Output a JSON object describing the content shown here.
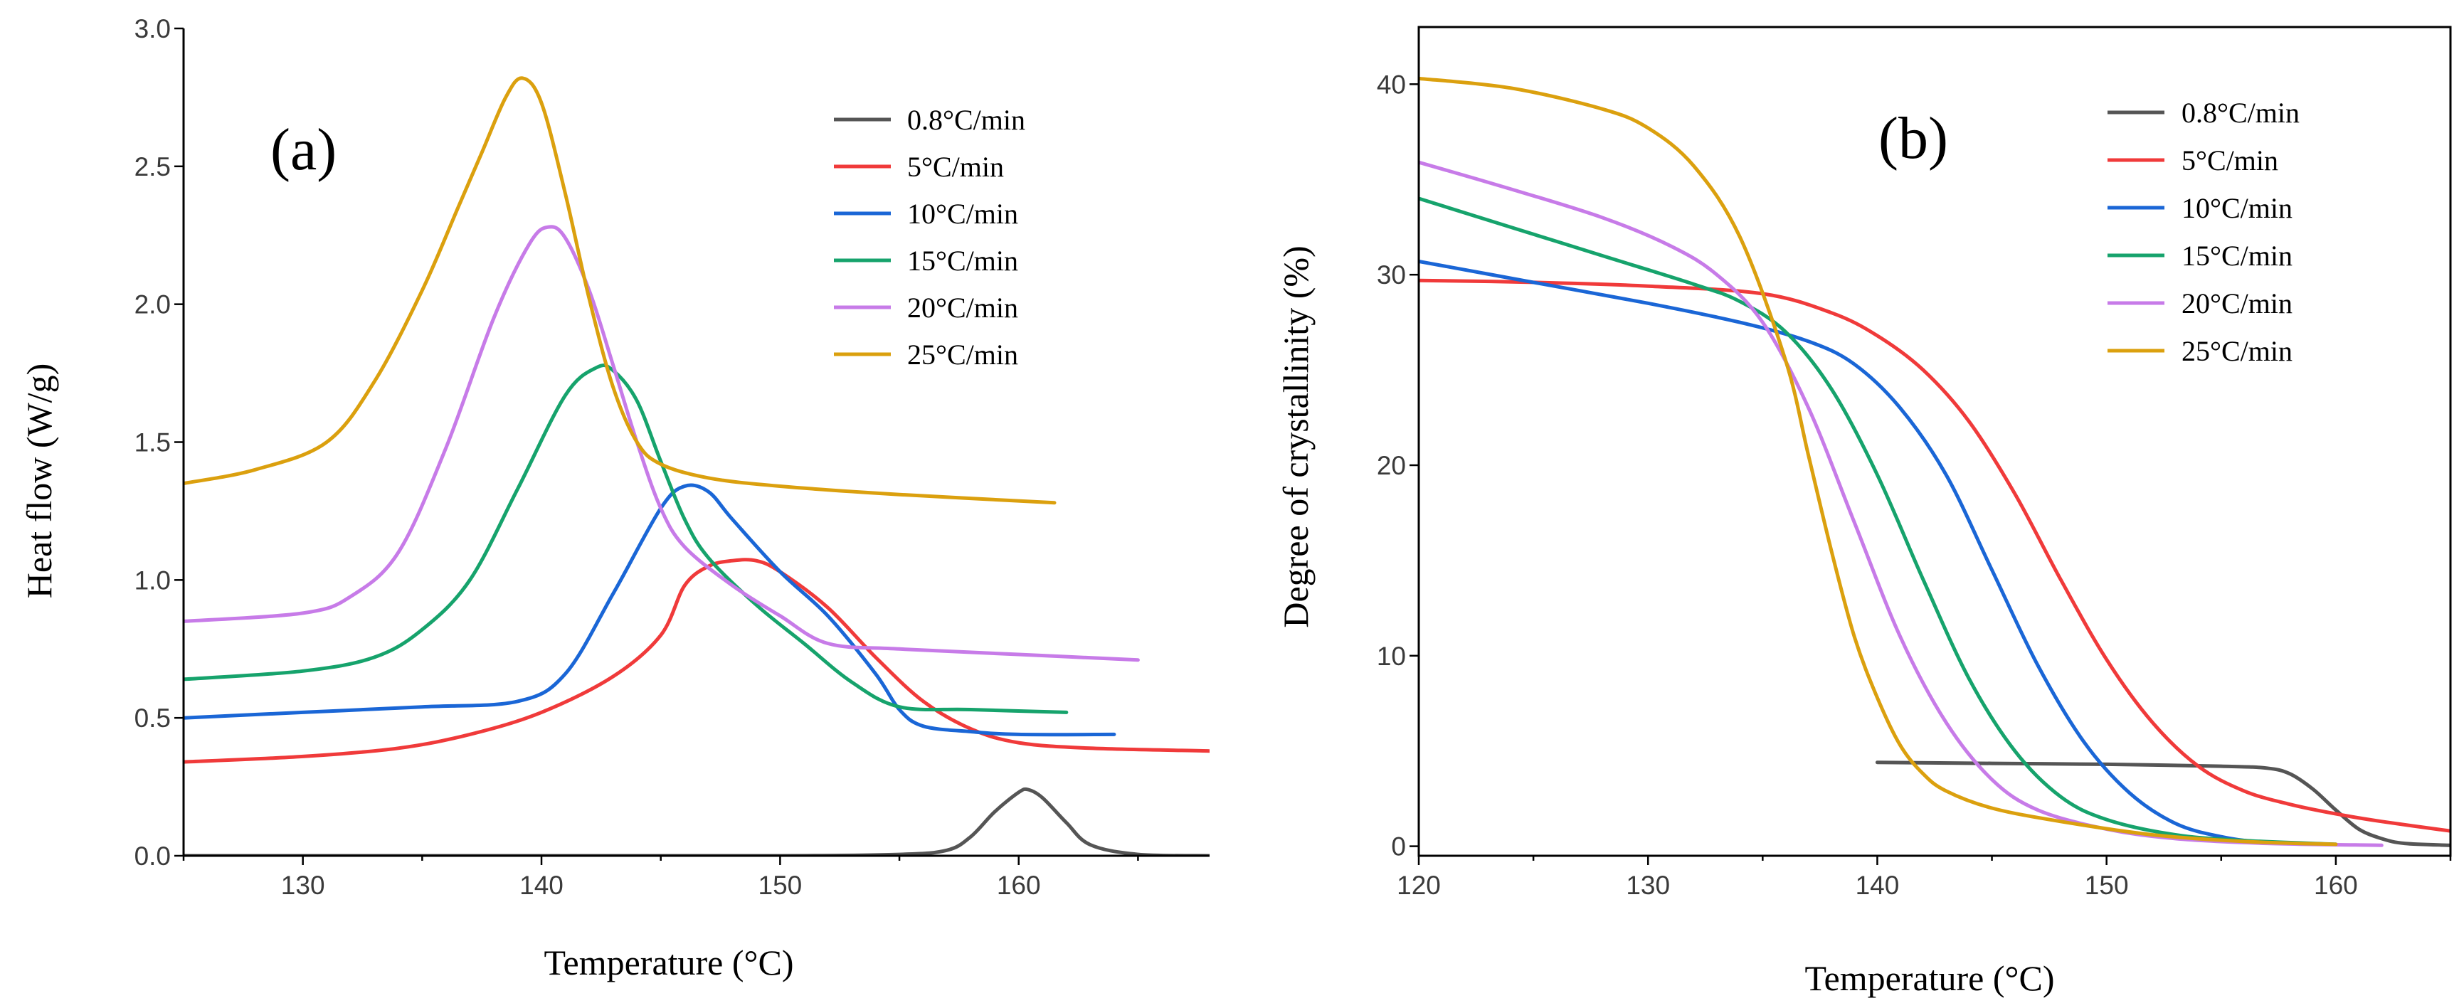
{
  "chart_data": [
    {
      "panel": "(a)",
      "type": "line",
      "xlabel": "Temperature (°C)",
      "ylabel": "Heat flow (W/g)",
      "xlim": [
        125,
        168
      ],
      "ylim": [
        0,
        3.0
      ],
      "xticks": [
        130,
        140,
        150,
        160
      ],
      "yticks": [
        0,
        0.5,
        1.0,
        1.5,
        2.0,
        2.5,
        3.0
      ],
      "ytick_labels": [
        "0.0",
        "0.5",
        "1.0",
        "1.5",
        "2.0",
        "2.5",
        "3.0"
      ],
      "xtick_labels": [
        "130",
        "140",
        "150",
        "160"
      ],
      "legend_position": "top-right",
      "series": [
        {
          "name": "0.8°C/min",
          "color": "#555555",
          "x": [
            125,
            140,
            150,
            155,
            157,
            158,
            159,
            160,
            160.4,
            161,
            162,
            163,
            165,
            168
          ],
          "y": [
            0.0,
            0.0,
            0.0,
            0.005,
            0.02,
            0.07,
            0.16,
            0.23,
            0.24,
            0.21,
            0.12,
            0.04,
            0.005,
            0.0
          ]
        },
        {
          "name": "5°C/min",
          "color": "#f03a3a",
          "x": [
            125,
            130,
            134,
            137,
            140,
            143,
            145,
            146,
            147,
            148,
            149,
            150,
            152,
            154,
            156,
            158,
            160,
            163,
            168
          ],
          "y": [
            0.34,
            0.36,
            0.39,
            0.44,
            0.52,
            0.65,
            0.8,
            0.98,
            1.05,
            1.07,
            1.07,
            1.03,
            0.9,
            0.72,
            0.56,
            0.46,
            0.41,
            0.39,
            0.38
          ]
        },
        {
          "name": "10°C/min",
          "color": "#1a66d6",
          "x": [
            125,
            130,
            135,
            139,
            141,
            143,
            145,
            146,
            147,
            148,
            150,
            152,
            154,
            155,
            156,
            158,
            160,
            164
          ],
          "y": [
            0.5,
            0.52,
            0.54,
            0.56,
            0.66,
            0.95,
            1.26,
            1.34,
            1.32,
            1.22,
            1.03,
            0.87,
            0.66,
            0.53,
            0.47,
            0.45,
            0.44,
            0.44
          ]
        },
        {
          "name": "15°C/min",
          "color": "#16a36c",
          "x": [
            125,
            130,
            133,
            135,
            137,
            139,
            141,
            142.3,
            143,
            144,
            145,
            146,
            147,
            149,
            151,
            153,
            155,
            158,
            162
          ],
          "y": [
            0.64,
            0.67,
            0.72,
            0.82,
            1.0,
            1.33,
            1.67,
            1.77,
            1.76,
            1.65,
            1.43,
            1.22,
            1.08,
            0.91,
            0.77,
            0.63,
            0.54,
            0.53,
            0.52
          ]
        },
        {
          "name": "20°C/min",
          "color": "#c77be8",
          "x": [
            125,
            130,
            132,
            134,
            136,
            138,
            139.5,
            140.3,
            141,
            142,
            143,
            144,
            145,
            146,
            148,
            150,
            152,
            155,
            160,
            165
          ],
          "y": [
            0.85,
            0.88,
            0.94,
            1.1,
            1.48,
            1.95,
            2.22,
            2.28,
            2.24,
            2.05,
            1.78,
            1.5,
            1.26,
            1.12,
            0.98,
            0.87,
            0.77,
            0.75,
            0.73,
            0.71
          ]
        },
        {
          "name": "25°C/min",
          "color": "#dba00e",
          "x": [
            125,
            128,
            131,
            133,
            135,
            136.5,
            137.5,
            138.5,
            139.2,
            140,
            141,
            142,
            143,
            144,
            145,
            147,
            150,
            155,
            161.5
          ],
          "y": [
            1.35,
            1.4,
            1.5,
            1.72,
            2.05,
            2.35,
            2.55,
            2.75,
            2.82,
            2.73,
            2.4,
            2.02,
            1.7,
            1.5,
            1.42,
            1.37,
            1.34,
            1.31,
            1.28
          ]
        }
      ]
    },
    {
      "panel": "(b)",
      "type": "line",
      "xlabel": "Temperature (°C)",
      "ylabel": "Degree of crystallinity (%)",
      "xlim": [
        120,
        165
      ],
      "ylim": [
        -0.5,
        43
      ],
      "xticks": [
        120,
        130,
        140,
        150,
        160
      ],
      "yticks": [
        0,
        10,
        20,
        30,
        40
      ],
      "xtick_labels": [
        "120",
        "130",
        "140",
        "150",
        "160"
      ],
      "ytick_labels": [
        "0",
        "10",
        "20",
        "30",
        "40"
      ],
      "legend_position": "top-right",
      "series": [
        {
          "name": "0.8°C/min",
          "color": "#555555",
          "x": [
            140,
            145,
            150,
            155,
            157,
            158,
            159,
            160,
            161,
            162,
            163,
            165
          ],
          "y": [
            4.4,
            4.35,
            4.3,
            4.2,
            4.1,
            3.8,
            3.0,
            1.9,
            0.9,
            0.4,
            0.15,
            0.05
          ]
        },
        {
          "name": "5°C/min",
          "color": "#f03a3a",
          "x": [
            120,
            125,
            130,
            135,
            138,
            140,
            142,
            144,
            146,
            148,
            150,
            152,
            154,
            156,
            158,
            160,
            162,
            165
          ],
          "y": [
            29.7,
            29.6,
            29.4,
            29.0,
            28.0,
            26.8,
            25.0,
            22.3,
            18.5,
            14.0,
            9.8,
            6.5,
            4.2,
            2.9,
            2.2,
            1.7,
            1.3,
            0.8
          ]
        },
        {
          "name": "10°C/min",
          "color": "#1a66d6",
          "x": [
            120,
            125,
            130,
            134,
            137,
            139,
            141,
            143,
            145,
            147,
            149,
            151,
            153,
            155,
            157,
            160
          ],
          "y": [
            30.7,
            29.6,
            28.5,
            27.5,
            26.5,
            25.3,
            23.0,
            19.5,
            14.5,
            9.5,
            5.5,
            2.8,
            1.2,
            0.5,
            0.2,
            0.1
          ]
        },
        {
          "name": "15°C/min",
          "color": "#16a36c",
          "x": [
            120,
            124,
            128,
            132,
            134,
            136,
            138,
            140,
            142,
            144,
            146,
            148,
            150,
            153,
            156,
            160
          ],
          "y": [
            34.0,
            32.5,
            31.0,
            29.5,
            28.6,
            27.0,
            24.0,
            19.5,
            14.0,
            8.8,
            5.0,
            2.6,
            1.4,
            0.6,
            0.3,
            0.1
          ]
        },
        {
          "name": "20°C/min",
          "color": "#c77be8",
          "x": [
            120,
            124,
            128,
            131,
            133,
            135,
            137,
            139,
            141,
            143,
            145,
            147,
            150,
            153,
            157,
            162
          ],
          "y": [
            35.9,
            34.5,
            33.0,
            31.5,
            30.0,
            27.5,
            23.0,
            17.0,
            11.0,
            6.5,
            3.5,
            1.9,
            0.9,
            0.4,
            0.15,
            0.05
          ]
        },
        {
          "name": "25°C/min",
          "color": "#dba00e",
          "x": [
            120,
            124,
            128,
            130,
            132,
            134,
            136,
            137,
            138,
            139,
            140,
            141,
            142,
            143,
            145,
            148,
            152,
            156,
            160
          ],
          "y": [
            40.3,
            39.8,
            38.7,
            37.7,
            35.7,
            32.0,
            25.5,
            20.5,
            15.5,
            11.0,
            7.8,
            5.3,
            3.8,
            2.9,
            2.0,
            1.3,
            0.6,
            0.25,
            0.1
          ]
        }
      ]
    }
  ]
}
